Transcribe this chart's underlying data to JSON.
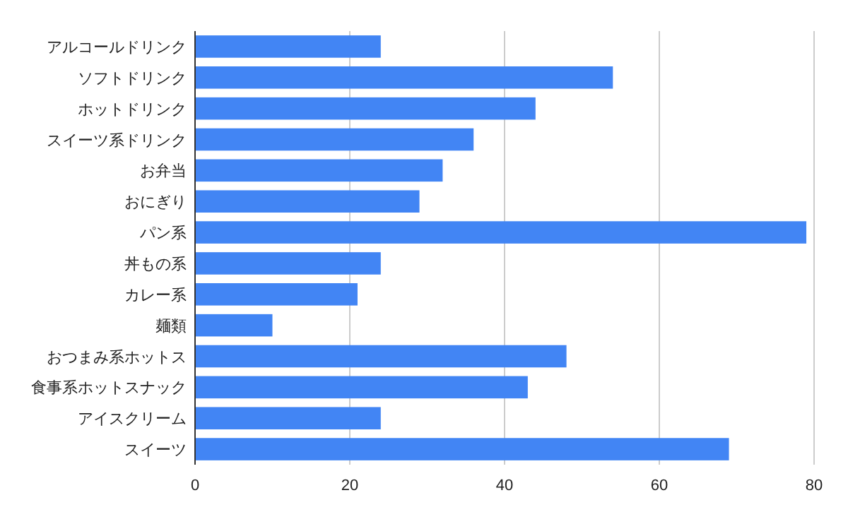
{
  "chart_data": {
    "type": "bar",
    "orientation": "horizontal",
    "categories": [
      "アルコールドリンク",
      "ソフトドリンク",
      "ホットドリンク",
      "スイーツ系ドリンク",
      "お弁当",
      "おにぎり",
      "パン系",
      "丼もの系",
      "カレー系",
      "麺類",
      "おつまみ系ホットス",
      "食事系ホットスナック",
      "アイスクリーム",
      "スイーツ"
    ],
    "series": [
      {
        "color": "#4285f4",
        "values": [
          24,
          54,
          44,
          36,
          32,
          29,
          79,
          24,
          21,
          10,
          48,
          43,
          24,
          69
        ]
      }
    ],
    "xlim": [
      0,
      80
    ],
    "xticks": [
      0,
      20,
      40,
      60,
      80
    ],
    "grid": "x"
  }
}
